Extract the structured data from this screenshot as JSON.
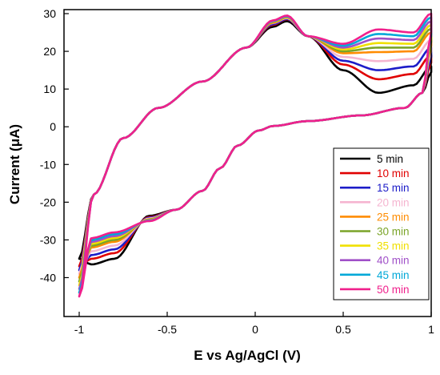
{
  "chart_data": {
    "type": "line",
    "title": "",
    "xlabel": "E vs Ag/AgCl (V)",
    "ylabel": "Current (μA)",
    "xlim": [
      -1,
      1
    ],
    "ylim": [
      -45,
      30
    ],
    "xticks": [
      -1,
      -0.5,
      0,
      0.5,
      1
    ],
    "xtick_labels": [
      "-1",
      "-0.5",
      "0",
      "0.5",
      "1"
    ],
    "yticks": [
      30,
      20,
      10,
      0,
      -10,
      -20,
      -30,
      -40
    ],
    "ytick_labels": [
      "30",
      "20",
      "10",
      "0",
      "-10",
      "-20",
      "-30",
      "-40"
    ],
    "grid": false,
    "legend_position": "bottom-right",
    "series": [
      {
        "name": "5 min",
        "color": "#000000",
        "anodic_peak": 28.0,
        "end_upper": 15.0,
        "end_lower": 14.5,
        "cathodic_plateau": -35.0,
        "v_upper": 26.5,
        "start": -35.0
      },
      {
        "name": "10 min",
        "color": "#e00000",
        "anodic_peak": 28.5,
        "end_upper": 18.0,
        "end_lower": 17.0,
        "cathodic_plateau": -33.5,
        "v_upper": 27.0,
        "start": -37.0
      },
      {
        "name": "15 min",
        "color": "#1c1cc8",
        "anodic_peak": 28.6,
        "end_upper": 20.0,
        "end_lower": 18.5,
        "cathodic_plateau": -32.5,
        "v_upper": 27.2,
        "start": -38.0
      },
      {
        "name": "20 min",
        "color": "#f5b5d0",
        "anodic_peak": 28.8,
        "end_upper": 22.0,
        "end_lower": 20.0,
        "cathodic_plateau": -31.5,
        "v_upper": 27.5,
        "start": -39.0
      },
      {
        "name": "25 min",
        "color": "#ff8c00",
        "anodic_peak": 29.0,
        "end_upper": 24.0,
        "end_lower": 21.5,
        "cathodic_plateau": -30.5,
        "v_upper": 27.6,
        "start": -40.0
      },
      {
        "name": "30 min",
        "color": "#7aa428",
        "anodic_peak": 29.1,
        "end_upper": 25.0,
        "end_lower": 22.5,
        "cathodic_plateau": -30.0,
        "v_upper": 27.8,
        "start": -41.0
      },
      {
        "name": "35 min",
        "color": "#f0e000",
        "anodic_peak": 29.2,
        "end_upper": 26.0,
        "end_lower": 23.5,
        "cathodic_plateau": -29.5,
        "v_upper": 27.9,
        "start": -42.0
      },
      {
        "name": "40 min",
        "color": "#a050c8",
        "anodic_peak": 29.3,
        "end_upper": 27.0,
        "end_lower": 24.0,
        "cathodic_plateau": -29.0,
        "v_upper": 28.0,
        "start": -43.0
      },
      {
        "name": "45 min",
        "color": "#00a8d8",
        "anodic_peak": 29.4,
        "end_upper": 28.0,
        "end_lower": 24.5,
        "cathodic_plateau": -28.5,
        "v_upper": 28.1,
        "start": -44.0
      },
      {
        "name": "50 min",
        "color": "#f0208c",
        "anodic_peak": 29.5,
        "end_upper": 29.0,
        "end_lower": 25.0,
        "cathodic_plateau": -28.0,
        "v_upper": 28.2,
        "start": -45.0
      }
    ]
  }
}
